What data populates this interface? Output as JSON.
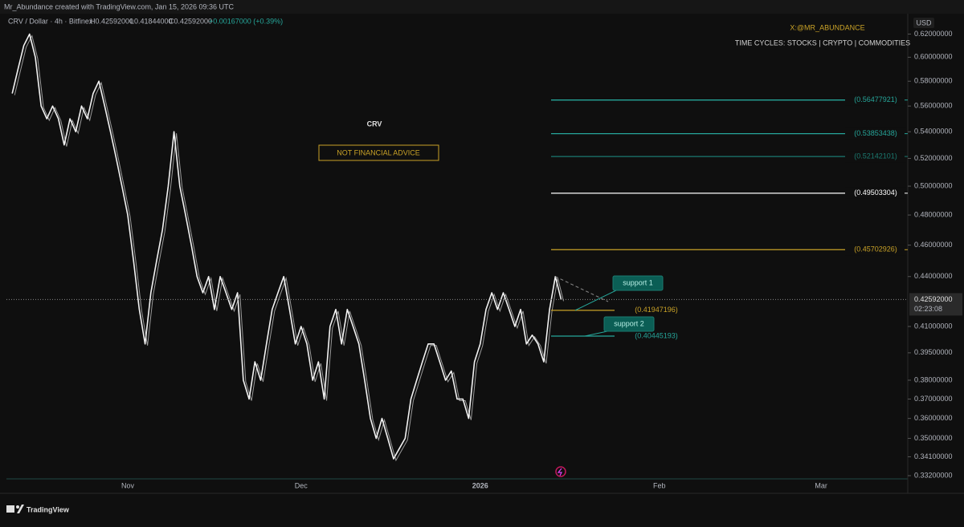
{
  "header": "Mr_Abundance created with TradingView.com, Jan 15, 2026 09:36 UTC",
  "chart_data": {
    "type": "line",
    "symbol_info": "CRV / Dollar · 4h · Bitfinex",
    "ohlc": [
      "H0.42592000",
      "L0.41844000",
      "C0.42592000"
    ],
    "change": "+0.00167000 (+0.39%)",
    "title": "CRV",
    "subtitle": "NOT FINANCIAL ADVICE",
    "annotations": [
      "X:@MR_ABUNDANCE",
      "TIME CYCLES: STOCKS | CRYPTO | COMMODITIES"
    ],
    "currency": "USD",
    "color": "#f2f2f2",
    "log_scale": true,
    "values": [
      0.57,
      0.59,
      0.61,
      0.62,
      0.6,
      0.56,
      0.55,
      0.56,
      0.55,
      0.53,
      0.55,
      0.54,
      0.56,
      0.55,
      0.57,
      0.58,
      0.56,
      0.54,
      0.52,
      0.5,
      0.48,
      0.45,
      0.42,
      0.4,
      0.43,
      0.45,
      0.47,
      0.5,
      0.54,
      0.5,
      0.48,
      0.46,
      0.44,
      0.43,
      0.44,
      0.42,
      0.44,
      0.43,
      0.42,
      0.43,
      0.38,
      0.37,
      0.39,
      0.38,
      0.4,
      0.42,
      0.43,
      0.44,
      0.42,
      0.4,
      0.41,
      0.4,
      0.38,
      0.39,
      0.37,
      0.41,
      0.42,
      0.4,
      0.42,
      0.41,
      0.4,
      0.38,
      0.36,
      0.35,
      0.36,
      0.35,
      0.34,
      0.345,
      0.35,
      0.37,
      0.38,
      0.39,
      0.4,
      0.4,
      0.39,
      0.38,
      0.385,
      0.37,
      0.37,
      0.36,
      0.39,
      0.4,
      0.42,
      0.43,
      0.42,
      0.43,
      0.42,
      0.41,
      0.42,
      0.4,
      0.405,
      0.4,
      0.39,
      0.42,
      0.44,
      0.42592
    ],
    "levels": [
      {
        "value": 0.56477921,
        "label": "(0.56477921)",
        "color": "#26a69a"
      },
      {
        "value": 0.53853438,
        "label": "(0.53853438)",
        "color": "#26a69a"
      },
      {
        "value": 0.52142101,
        "label": "(0.52142101)",
        "color": "#1b7a70"
      },
      {
        "value": 0.49503304,
        "label": "(0.49503304)",
        "color": "#ffffff"
      },
      {
        "value": 0.45702926,
        "label": "(0.45702926)",
        "color": "#c9a227"
      }
    ],
    "support_levels": [
      {
        "name": "support 1",
        "value": 0.41947196,
        "label": "(0.41947196)",
        "color": "#c9a227"
      },
      {
        "name": "support 2",
        "value": 0.40445193,
        "label": "(0.40445193)",
        "color": "#26a69a"
      }
    ],
    "last_price": {
      "value": 0.42592,
      "label": "0.42592000"
    },
    "countdown": "02:23:08",
    "xlim": [
      -1,
      155
    ],
    "xticks": [
      {
        "value": 20,
        "label": "Nov"
      },
      {
        "value": 50,
        "label": "Dec"
      },
      {
        "value": 81,
        "label": "2026"
      },
      {
        "value": 112,
        "label": "Feb"
      },
      {
        "value": 140,
        "label": "Mar"
      }
    ],
    "ylim": [
      0.3305,
      0.636
    ],
    "yticks": [
      {
        "value": 0.62,
        "label": "0.62000000"
      },
      {
        "value": 0.6,
        "label": "0.60000000"
      },
      {
        "value": 0.58,
        "label": "0.58000000"
      },
      {
        "value": 0.56,
        "label": "0.56000000"
      },
      {
        "value": 0.54,
        "label": "0.54000000"
      },
      {
        "value": 0.52,
        "label": "0.52000000"
      },
      {
        "value": 0.5,
        "label": "0.50000000"
      },
      {
        "value": 0.48,
        "label": "0.48000000"
      },
      {
        "value": 0.46,
        "label": "0.46000000"
      },
      {
        "value": 0.44,
        "label": "0.44000000"
      },
      {
        "value": 0.41,
        "label": "0.41000000"
      },
      {
        "value": 0.395,
        "label": "0.39500000"
      },
      {
        "value": 0.38,
        "label": "0.38000000"
      },
      {
        "value": 0.37,
        "label": "0.37000000"
      },
      {
        "value": 0.36,
        "label": "0.36000000"
      },
      {
        "value": 0.35,
        "label": "0.35000000"
      },
      {
        "value": 0.341,
        "label": "0.34100000"
      },
      {
        "value": 0.332,
        "label": "0.33200000"
      }
    ]
  },
  "footer": "TradingView"
}
